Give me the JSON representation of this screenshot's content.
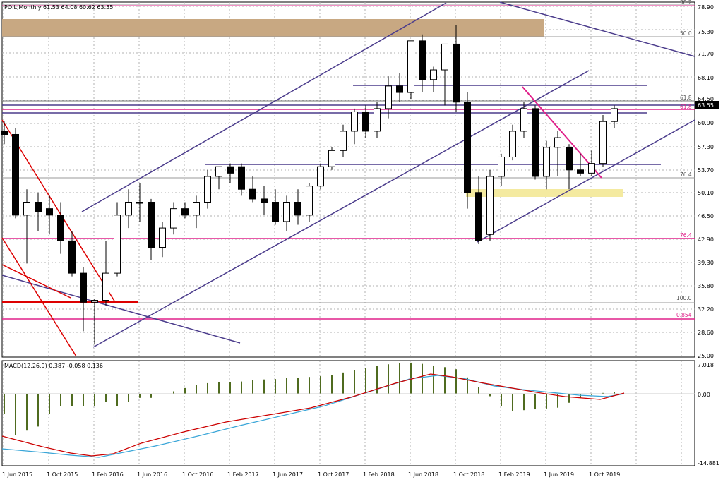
{
  "header": {
    "symbol_info": "POIL,Monthly  61.53 64.08 60.62 63.55",
    "macd_info": "MACD(12,26,9) 0.387 -0.058 0.136"
  },
  "price_axis": {
    "ticks": [
      "78.90",
      "75.30",
      "71.70",
      "68.10",
      "64.50",
      "60.90",
      "57.30",
      "53.70",
      "50.10",
      "46.50",
      "42.90",
      "39.30",
      "35.80",
      "32.20",
      "28.60",
      "25.00"
    ],
    "current_price": "63.55"
  },
  "macd_axis": {
    "ticks": [
      "7.018",
      "0.00",
      "-14.881"
    ]
  },
  "time_axis": {
    "labels": [
      "1 Jun 2015",
      "1 Oct 2015",
      "1 Feb 2016",
      "1 Jun 2016",
      "1 Oct 2016",
      "1 Feb 2017",
      "1 Jun 2017",
      "1 Oct 2017",
      "1 Feb 2018",
      "1 Jun 2018",
      "1 Oct 2018",
      "1 Feb 2019",
      "1 Jun 2019",
      "1 Oct 2019"
    ]
  },
  "fib_labels": {
    "f38": "38.2",
    "f50": "50.0",
    "f618a": "61.8",
    "f618b": "61.8",
    "f764a": "76.4",
    "f764b": "76.4",
    "f100": "100.0",
    "f854": "0.854"
  },
  "colors": {
    "bull": "#ffffff",
    "bear": "#000000",
    "grid": "#b0b0b0",
    "channel": "#4b3c8c",
    "red_line": "#dd0000",
    "magenta": "#e0208a",
    "zone_brown": "#c8a882",
    "zone_yellow": "#f4eaa0",
    "macd_hist": "#4f6b1f",
    "macd_signal": "#cc0000",
    "macd_line": "#3aa6d8"
  },
  "chart_data": {
    "type": "candlestick",
    "title": "POIL,Monthly",
    "timeframe": "Monthly",
    "ylim": [
      25.0,
      80.0
    ],
    "candles": [
      {
        "o": 60.0,
        "h": 61.5,
        "l": 58.0,
        "c": 59.5
      },
      {
        "o": 59.5,
        "h": 60.5,
        "l": 46.5,
        "c": 47.0
      },
      {
        "o": 47.0,
        "h": 51.0,
        "l": 39.5,
        "c": 49.0
      },
      {
        "o": 49.0,
        "h": 50.5,
        "l": 44.5,
        "c": 47.5
      },
      {
        "o": 48.0,
        "h": 50.0,
        "l": 44.0,
        "c": 47.0
      },
      {
        "o": 47.0,
        "h": 49.0,
        "l": 41.0,
        "c": 43.0
      },
      {
        "o": 43.0,
        "h": 44.5,
        "l": 37.5,
        "c": 38.0
      },
      {
        "o": 38.0,
        "h": 39.0,
        "l": 29.0,
        "c": 33.5
      },
      {
        "o": 33.5,
        "h": 34.0,
        "l": 27.0,
        "c": 33.8
      },
      {
        "o": 33.8,
        "h": 43.0,
        "l": 33.0,
        "c": 38.0
      },
      {
        "o": 38.0,
        "h": 49.0,
        "l": 37.5,
        "c": 47.0
      },
      {
        "o": 47.0,
        "h": 51.0,
        "l": 45.0,
        "c": 49.0
      },
      {
        "o": 49.0,
        "h": 52.0,
        "l": 46.0,
        "c": 49.0
      },
      {
        "o": 49.0,
        "h": 49.5,
        "l": 40.0,
        "c": 42.0
      },
      {
        "o": 42.0,
        "h": 46.0,
        "l": 40.5,
        "c": 45.0
      },
      {
        "o": 45.0,
        "h": 49.0,
        "l": 44.0,
        "c": 48.0
      },
      {
        "o": 48.0,
        "h": 49.0,
        "l": 46.5,
        "c": 47.0
      },
      {
        "o": 47.0,
        "h": 50.0,
        "l": 45.0,
        "c": 49.0
      },
      {
        "o": 49.0,
        "h": 54.0,
        "l": 48.0,
        "c": 53.0
      },
      {
        "o": 53.0,
        "h": 54.5,
        "l": 51.0,
        "c": 54.5
      },
      {
        "o": 54.5,
        "h": 55.0,
        "l": 52.0,
        "c": 53.5
      },
      {
        "o": 54.5,
        "h": 55.0,
        "l": 50.0,
        "c": 51.0
      },
      {
        "o": 51.0,
        "h": 53.0,
        "l": 49.0,
        "c": 49.5
      },
      {
        "o": 49.5,
        "h": 51.5,
        "l": 47.0,
        "c": 49.0
      },
      {
        "o": 49.0,
        "h": 51.0,
        "l": 45.5,
        "c": 46.0
      },
      {
        "o": 46.0,
        "h": 50.0,
        "l": 44.5,
        "c": 49.0
      },
      {
        "o": 49.0,
        "h": 51.0,
        "l": 45.5,
        "c": 47.0
      },
      {
        "o": 47.0,
        "h": 52.0,
        "l": 46.0,
        "c": 51.5
      },
      {
        "o": 51.5,
        "h": 55.0,
        "l": 51.0,
        "c": 54.5
      },
      {
        "o": 54.5,
        "h": 57.5,
        "l": 54.0,
        "c": 57.0
      },
      {
        "o": 57.0,
        "h": 61.0,
        "l": 56.0,
        "c": 60.0
      },
      {
        "o": 60.0,
        "h": 63.5,
        "l": 58.0,
        "c": 63.0
      },
      {
        "o": 63.0,
        "h": 64.0,
        "l": 59.0,
        "c": 60.0
      },
      {
        "o": 60.0,
        "h": 64.5,
        "l": 59.0,
        "c": 63.5
      },
      {
        "o": 63.5,
        "h": 68.5,
        "l": 62.0,
        "c": 67.0
      },
      {
        "o": 67.0,
        "h": 69.0,
        "l": 64.5,
        "c": 66.0
      },
      {
        "o": 66.0,
        "h": 74.0,
        "l": 65.0,
        "c": 74.0
      },
      {
        "o": 74.0,
        "h": 75.0,
        "l": 66.0,
        "c": 68.0
      },
      {
        "o": 68.0,
        "h": 70.0,
        "l": 66.0,
        "c": 69.5
      },
      {
        "o": 69.5,
        "h": 73.5,
        "l": 64.0,
        "c": 73.5
      },
      {
        "o": 73.5,
        "h": 76.5,
        "l": 63.0,
        "c": 64.5
      },
      {
        "o": 64.5,
        "h": 66.0,
        "l": 48.0,
        "c": 50.5
      },
      {
        "o": 50.5,
        "h": 53.0,
        "l": 42.5,
        "c": 43.0
      },
      {
        "o": 44.0,
        "h": 54.0,
        "l": 43.0,
        "c": 53.0
      },
      {
        "o": 53.0,
        "h": 56.5,
        "l": 51.5,
        "c": 56.0
      },
      {
        "o": 56.0,
        "h": 61.0,
        "l": 55.5,
        "c": 60.0
      },
      {
        "o": 60.0,
        "h": 64.5,
        "l": 59.0,
        "c": 63.5
      },
      {
        "o": 63.5,
        "h": 64.0,
        "l": 52.5,
        "c": 53.0
      },
      {
        "o": 53.0,
        "h": 58.5,
        "l": 51.0,
        "c": 57.5
      },
      {
        "o": 57.5,
        "h": 60.0,
        "l": 53.0,
        "c": 59.0
      },
      {
        "o": 57.5,
        "h": 58.0,
        "l": 51.0,
        "c": 54.0
      },
      {
        "o": 54.0,
        "h": 56.5,
        "l": 53.0,
        "c": 53.5
      },
      {
        "o": 53.5,
        "h": 57.0,
        "l": 53.0,
        "c": 55.0
      },
      {
        "o": 55.0,
        "h": 62.5,
        "l": 54.5,
        "c": 61.5
      },
      {
        "o": 61.5,
        "h": 64.0,
        "l": 60.5,
        "c": 63.5
      }
    ],
    "macd": {
      "name": "MACD(12,26,9)",
      "values": [
        0.387,
        -0.058,
        0.136
      ],
      "ylim": [
        -14.881,
        7.018
      ]
    }
  }
}
